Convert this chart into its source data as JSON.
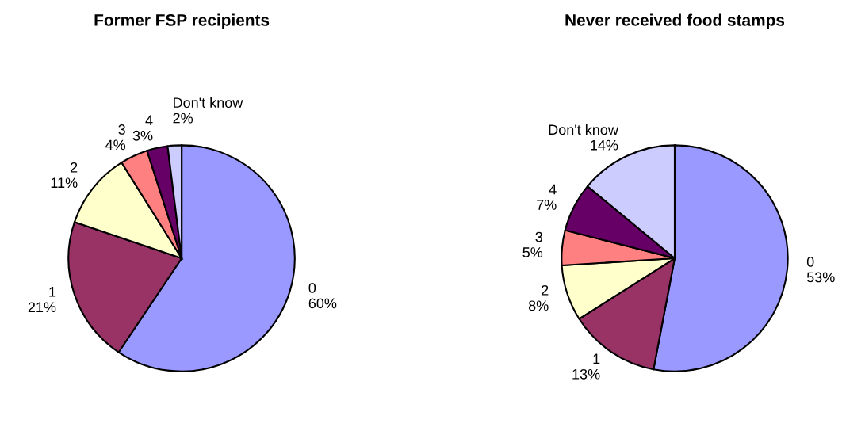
{
  "chart_data": [
    {
      "type": "pie",
      "title": "Former FSP recipients",
      "categories": [
        "0",
        "1",
        "2",
        "3",
        "4",
        "Don't know"
      ],
      "values": [
        60,
        21,
        11,
        4,
        3,
        2
      ],
      "value_labels": [
        "60%",
        "21%",
        "11%",
        "4%",
        "3%",
        "2%"
      ],
      "colors": [
        "#9999ff",
        "#993366",
        "#ffffcc",
        "#ff8080",
        "#660066",
        "#ccccff"
      ]
    },
    {
      "type": "pie",
      "title": "Never received food stamps",
      "categories": [
        "0",
        "1",
        "2",
        "3",
        "4",
        "Don't know"
      ],
      "values": [
        53,
        13,
        8,
        5,
        7,
        14
      ],
      "value_labels": [
        "53%",
        "13%",
        "8%",
        "5%",
        "7%",
        "14%"
      ],
      "colors": [
        "#9999ff",
        "#993366",
        "#ffffcc",
        "#ff8080",
        "#660066",
        "#ccccff"
      ]
    }
  ]
}
